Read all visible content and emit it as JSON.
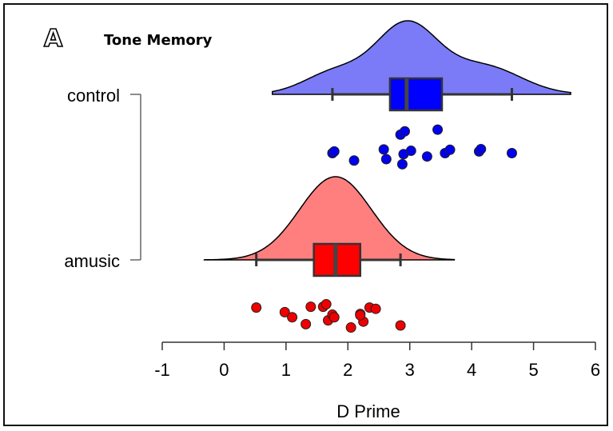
{
  "panel": {
    "letter": "A",
    "title": "Tone Memory"
  },
  "chart_data": {
    "type": "raincloud",
    "xlabel": "D Prime",
    "xlim": [
      -1,
      6
    ],
    "xticks": [
      -1,
      0,
      1,
      2,
      3,
      4,
      5,
      6
    ],
    "xtick_labels": [
      "-1",
      "0",
      "1",
      "2",
      "3",
      "4",
      "5",
      "6"
    ],
    "groups": [
      {
        "name": "control",
        "color": "#7b7bf7",
        "box_color": "#0000ff",
        "point_color": "#0000ee",
        "box": {
          "whisker_low": 1.75,
          "q1": 2.68,
          "median": 2.95,
          "q3": 3.52,
          "whisker_high": 4.65
        },
        "density_range": [
          0.78,
          5.6
        ],
        "density_components": [
          {
            "mu": 2.95,
            "sigma": 0.5,
            "w": 0.62
          },
          {
            "mu": 1.8,
            "sigma": 0.5,
            "w": 0.2
          },
          {
            "mu": 4.2,
            "sigma": 0.6,
            "w": 0.25
          }
        ],
        "points": [
          {
            "x": 1.75,
            "j": 0.75
          },
          {
            "x": 1.78,
            "j": 0.7
          },
          {
            "x": 2.1,
            "j": 0.97
          },
          {
            "x": 2.58,
            "j": 0.64
          },
          {
            "x": 2.62,
            "j": 0.93
          },
          {
            "x": 2.85,
            "j": 0.2
          },
          {
            "x": 2.92,
            "j": 0.1
          },
          {
            "x": 2.9,
            "j": 0.78
          },
          {
            "x": 2.88,
            "j": 1.08
          },
          {
            "x": 3.02,
            "j": 0.68
          },
          {
            "x": 3.28,
            "j": 0.85
          },
          {
            "x": 3.45,
            "j": 0.05
          },
          {
            "x": 3.57,
            "j": 0.75
          },
          {
            "x": 3.65,
            "j": 0.65
          },
          {
            "x": 4.12,
            "j": 0.7
          },
          {
            "x": 4.15,
            "j": 0.63
          },
          {
            "x": 4.65,
            "j": 0.75
          }
        ]
      },
      {
        "name": "amusic",
        "color": "#ff7f7f",
        "box_color": "#ff0000",
        "point_color": "#ee0000",
        "box": {
          "whisker_low": 0.52,
          "q1": 1.45,
          "median": 1.8,
          "q3": 2.2,
          "whisker_high": 2.85
        },
        "density_range": [
          -0.32,
          3.72
        ],
        "density_components": [
          {
            "mu": 1.8,
            "sigma": 0.58,
            "w": 1.0
          }
        ],
        "points": [
          {
            "x": 0.52,
            "j": 0.3
          },
          {
            "x": 0.98,
            "j": 0.48
          },
          {
            "x": 1.1,
            "j": 0.68
          },
          {
            "x": 1.32,
            "j": 0.95
          },
          {
            "x": 1.4,
            "j": 0.27
          },
          {
            "x": 1.6,
            "j": 0.27
          },
          {
            "x": 1.65,
            "j": 0.17
          },
          {
            "x": 1.68,
            "j": 0.8
          },
          {
            "x": 1.75,
            "j": 0.58
          },
          {
            "x": 1.78,
            "j": 0.68
          },
          {
            "x": 2.05,
            "j": 1.08
          },
          {
            "x": 2.2,
            "j": 0.55
          },
          {
            "x": 2.25,
            "j": 0.85
          },
          {
            "x": 2.35,
            "j": 0.3
          },
          {
            "x": 2.45,
            "j": 0.35
          },
          {
            "x": 2.2,
            "j": 0.6
          },
          {
            "x": 2.85,
            "j": 1.0
          }
        ]
      }
    ]
  }
}
